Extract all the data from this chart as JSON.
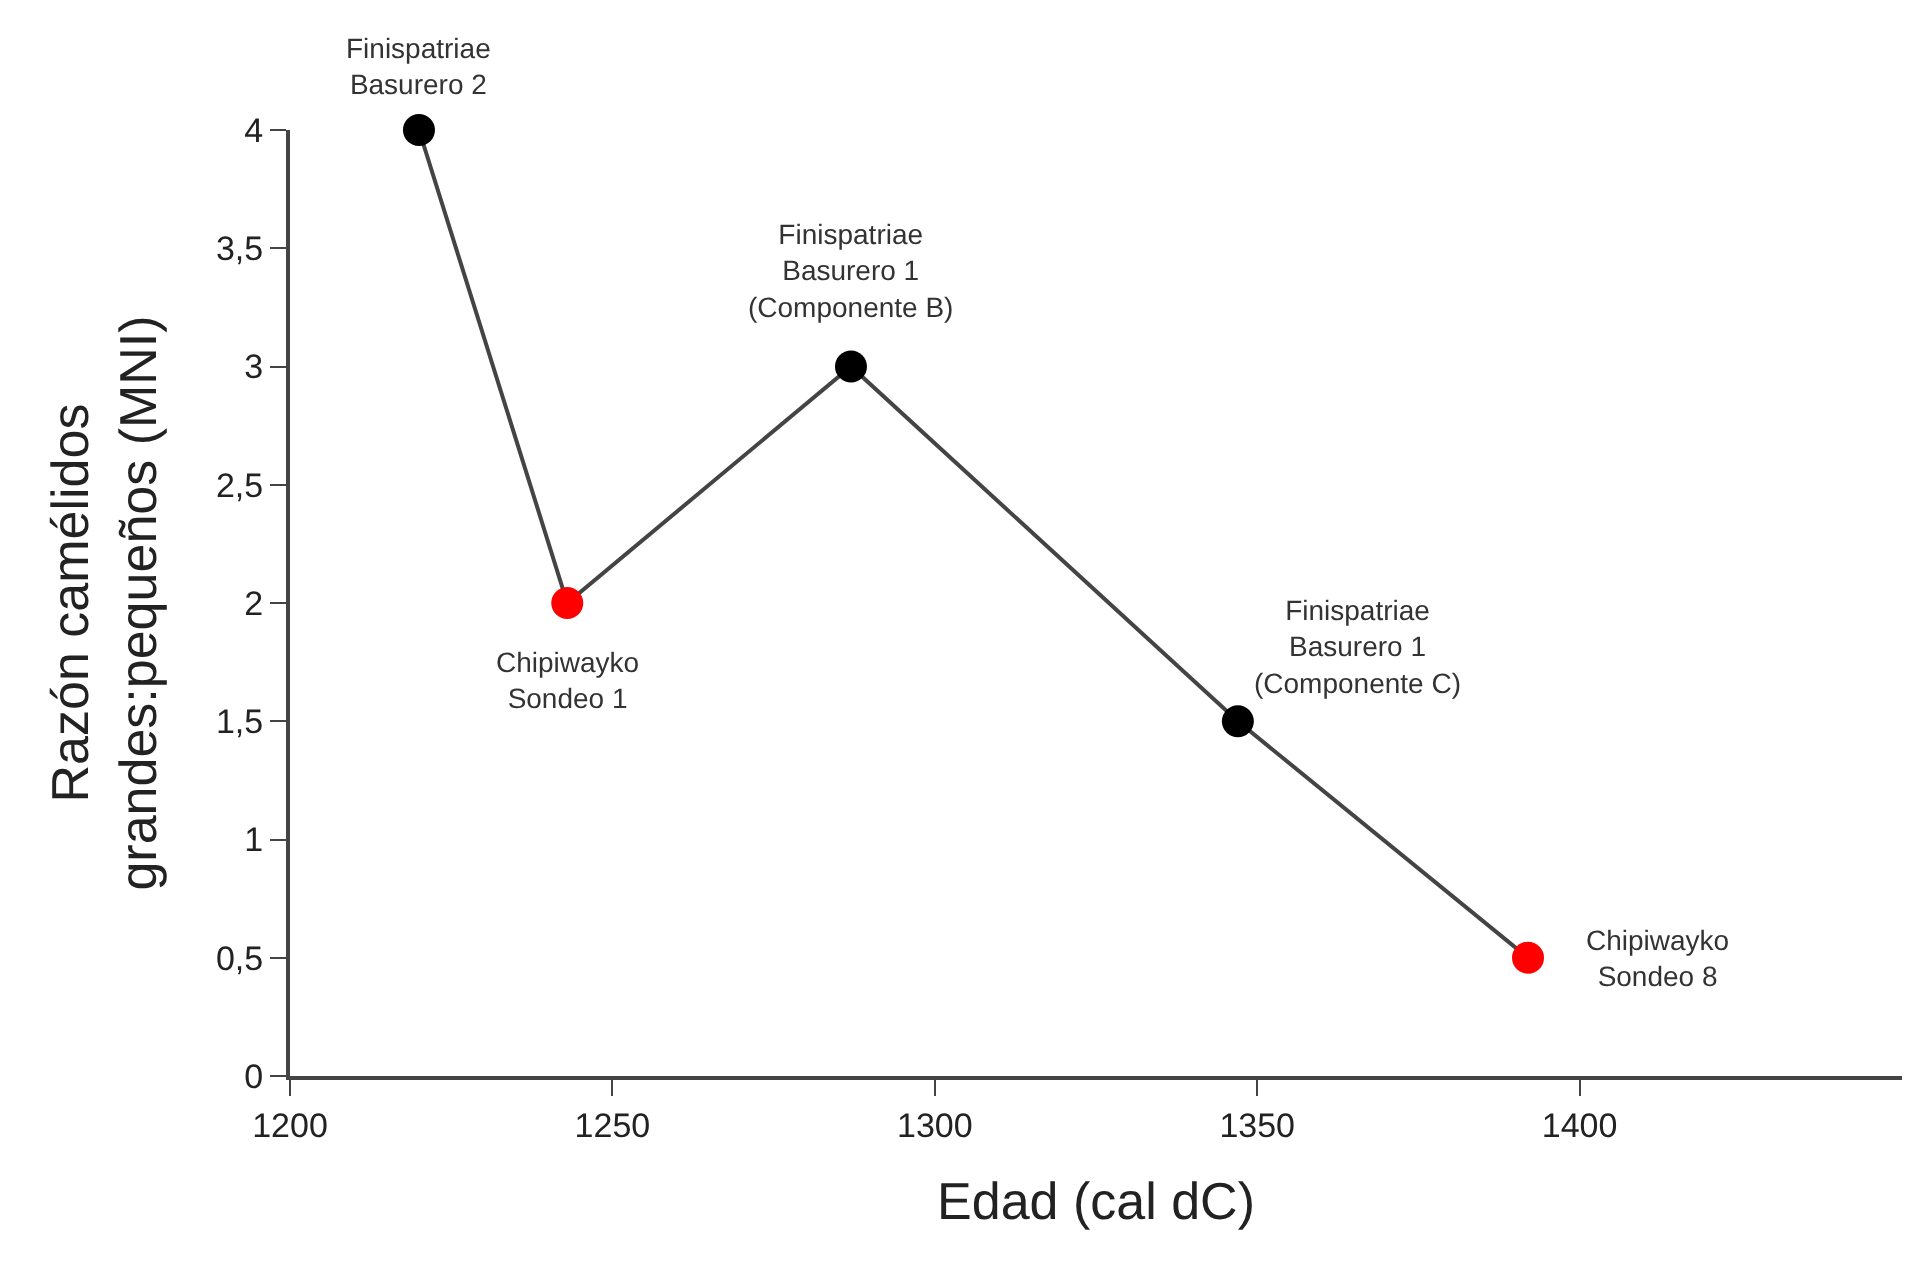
{
  "chart_data": {
    "type": "line",
    "xlabel": "Edad (cal dC)",
    "ylabel": "Razón camélidos\ngrandes:pequeños (MNI)",
    "x": [
      1220,
      1243,
      1287,
      1347,
      1392
    ],
    "series": [
      {
        "color": "#444444",
        "colors": [
          "#000000",
          "#ff0000",
          "#000000",
          "#000000",
          "#ff0000"
        ],
        "values": [
          4,
          2,
          3,
          1.5,
          0.5
        ]
      }
    ],
    "xlim": [
      1200,
      1450
    ],
    "xticks": [
      1200,
      1250,
      1300,
      1350,
      1400
    ],
    "ylim": [
      0,
      4
    ],
    "yticks": [
      0,
      {
        "value": 0.5,
        "label": "0,5"
      },
      1,
      {
        "value": 1.5,
        "label": "1,5"
      },
      2,
      {
        "value": 2.5,
        "label": "2,5"
      },
      3,
      {
        "value": 3.5,
        "label": "3,5"
      },
      4
    ],
    "grid": false,
    "marker": "circle",
    "line_style": "solid",
    "annotations": [
      {
        "text": "Finispatriae\nBasurero 2",
        "x": 1220,
        "y": 4
      },
      {
        "text": "Chipiwayko\nSondeo 1",
        "x": 1243,
        "y": 2
      },
      {
        "text": "Finispatriae\nBasurero 1\n(Componente B)",
        "x": 1287,
        "y": 3
      },
      {
        "text": "Finispatriae\nBasurero 1\n(Componente C)",
        "x": 1347,
        "y": 1.5
      },
      {
        "text": "Chipiwayko\nSondeo 8",
        "x": 1392,
        "y": 0.5
      }
    ]
  }
}
